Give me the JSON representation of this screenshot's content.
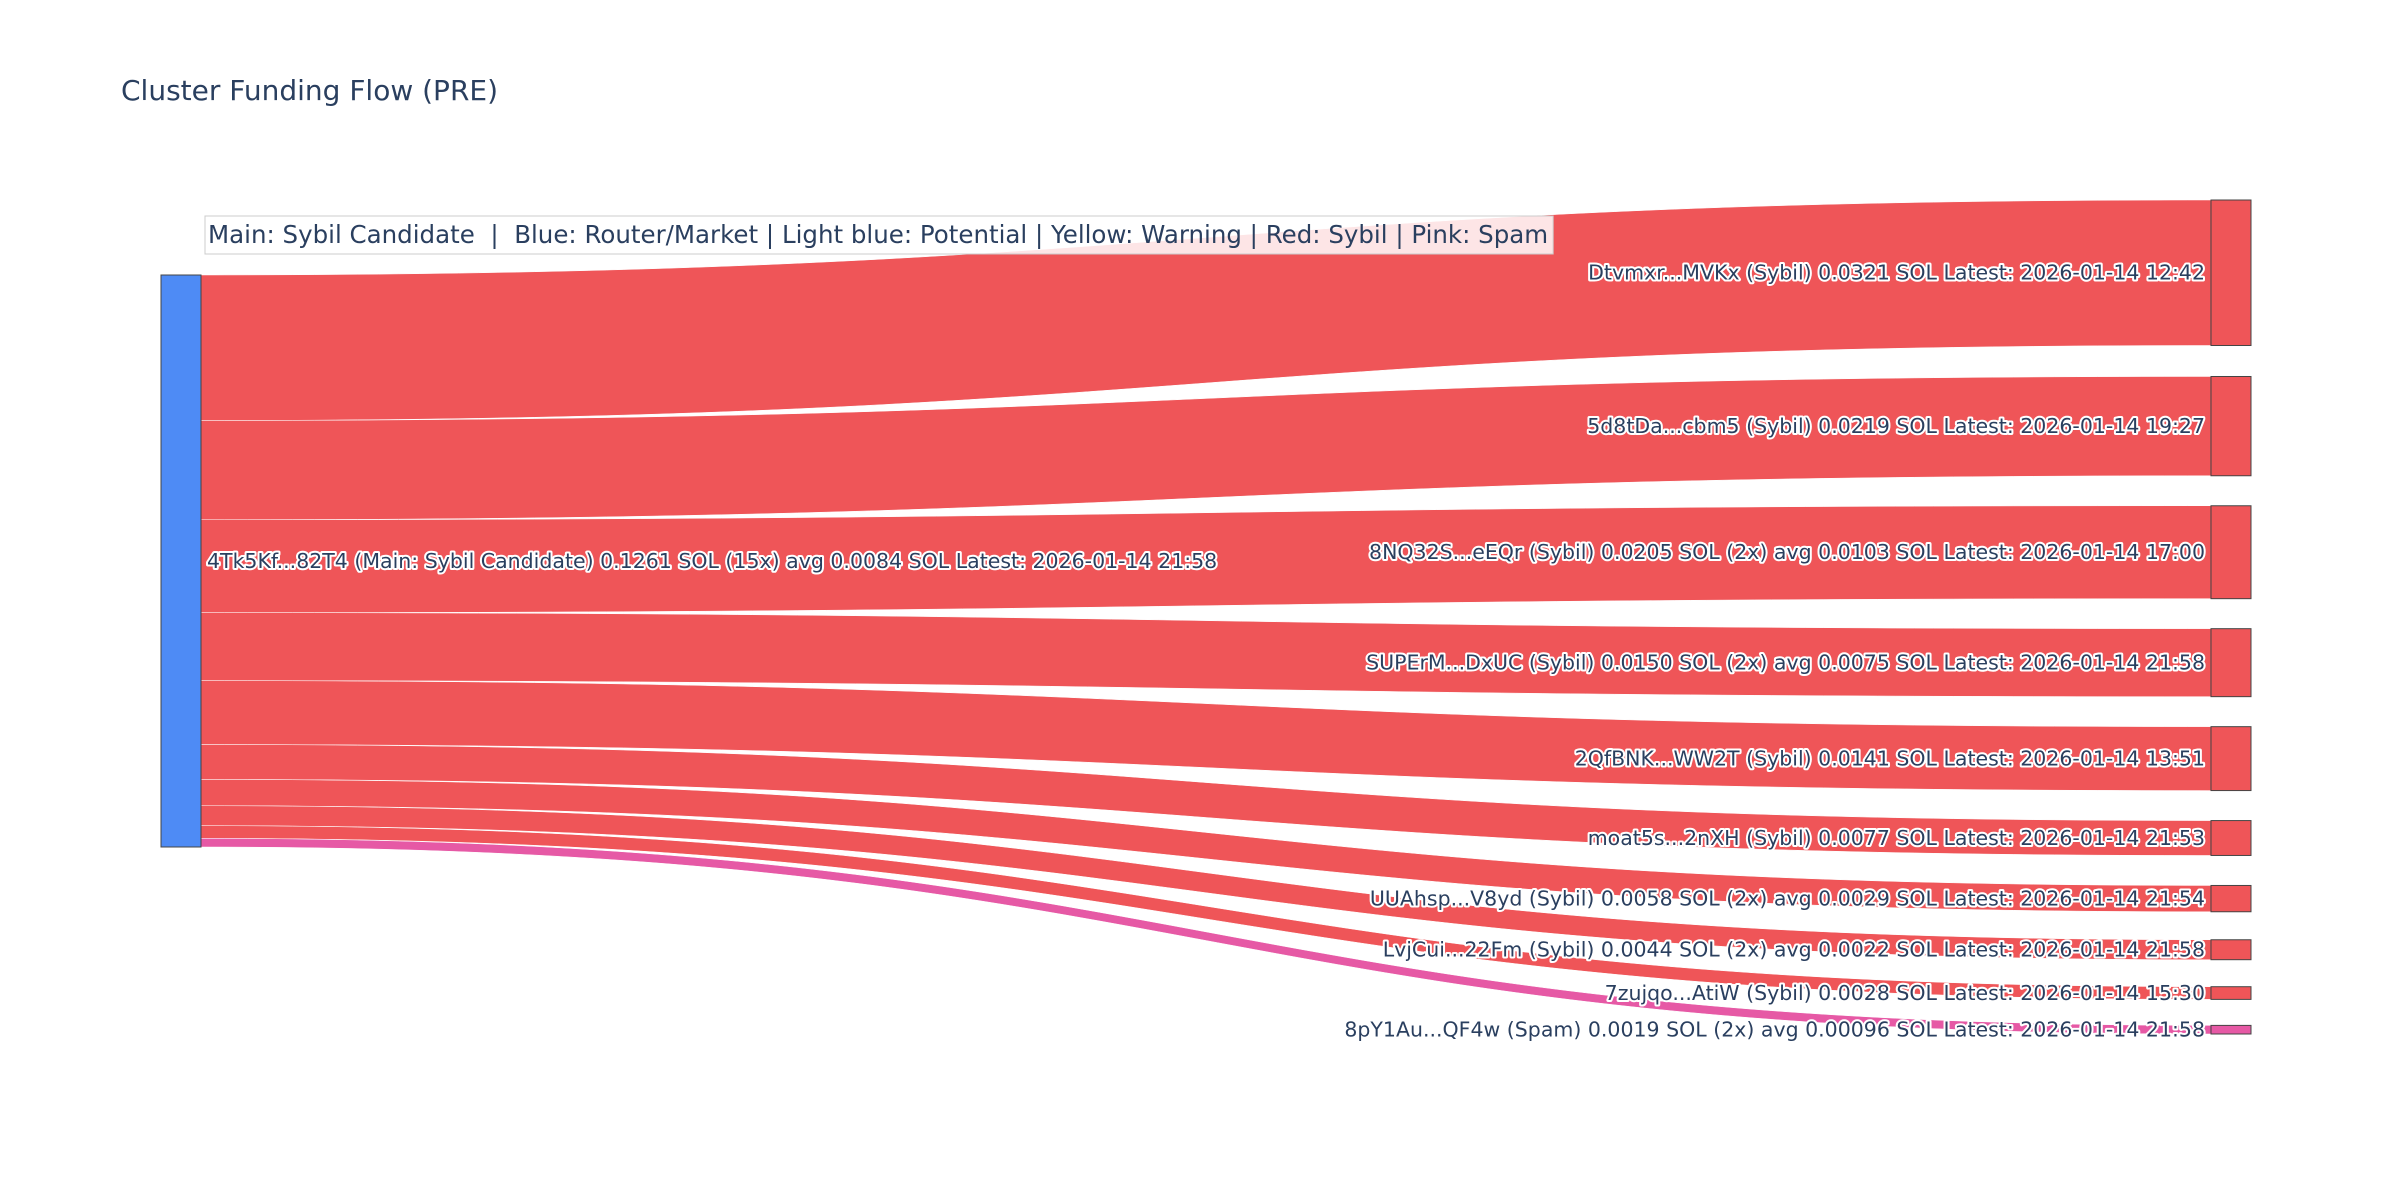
{
  "chart_data": {
    "type": "sankey",
    "title": "Cluster Funding Flow (PRE)",
    "legend_text": "Main: Sybil Candidate  |  Blue: Router/Market | Light blue: Potential | Yellow: Warning | Red: Sybil | Pink: Spam",
    "units": "SOL",
    "colors": {
      "main": "#4e8bf5",
      "sybil": "#ef5558",
      "spam": "#e659a5",
      "node_border": "#444444",
      "legend_bg": "#ffffff",
      "legend_border": "#cccccc"
    },
    "source": {
      "label": "4Tk5Kf...82T4 (Main: Sybil Candidate) 0.1261 SOL (15x) avg 0.0084 SOL Latest: 2026-01-14 21:58",
      "category": "main",
      "total": 0.1261
    },
    "targets": [
      {
        "label": "Dtvmxr...MVKx (Sybil) 0.0321 SOL Latest: 2026-01-14 12:42",
        "value": 0.0321,
        "category": "sybil"
      },
      {
        "label": "5d8tDa...cbm5 (Sybil) 0.0219 SOL Latest: 2026-01-14 19:27",
        "value": 0.0219,
        "category": "sybil"
      },
      {
        "label": "8NQ32S...eEQr (Sybil) 0.0205 SOL (2x) avg 0.0103 SOL Latest: 2026-01-14 17:00",
        "value": 0.0205,
        "category": "sybil"
      },
      {
        "label": "SUPErM...DxUC (Sybil) 0.0150 SOL (2x) avg 0.0075 SOL Latest: 2026-01-14 21:58",
        "value": 0.015,
        "category": "sybil"
      },
      {
        "label": "2QfBNK...WW2T (Sybil) 0.0141 SOL Latest: 2026-01-14 13:51",
        "value": 0.0141,
        "category": "sybil"
      },
      {
        "label": "moat5s...2nXH (Sybil) 0.0077 SOL Latest: 2026-01-14 21:53",
        "value": 0.0077,
        "category": "sybil"
      },
      {
        "label": "UUAhsp...V8yd (Sybil) 0.0058 SOL (2x) avg 0.0029 SOL Latest: 2026-01-14 21:54",
        "value": 0.0058,
        "category": "sybil"
      },
      {
        "label": "LvjCui...22Fm (Sybil) 0.0044 SOL (2x) avg 0.0022 SOL Latest: 2026-01-14 21:58",
        "value": 0.0044,
        "category": "sybil"
      },
      {
        "label": "7zujqo...AtiW (Sybil) 0.0028 SOL Latest: 2026-01-14 15:30",
        "value": 0.0028,
        "category": "sybil"
      },
      {
        "label": "8pY1Au...QF4w (Spam) 0.0019 SOL (2x) avg 0.00096 SOL Latest: 2026-01-14 21:58",
        "value": 0.0019,
        "category": "spam"
      }
    ]
  }
}
